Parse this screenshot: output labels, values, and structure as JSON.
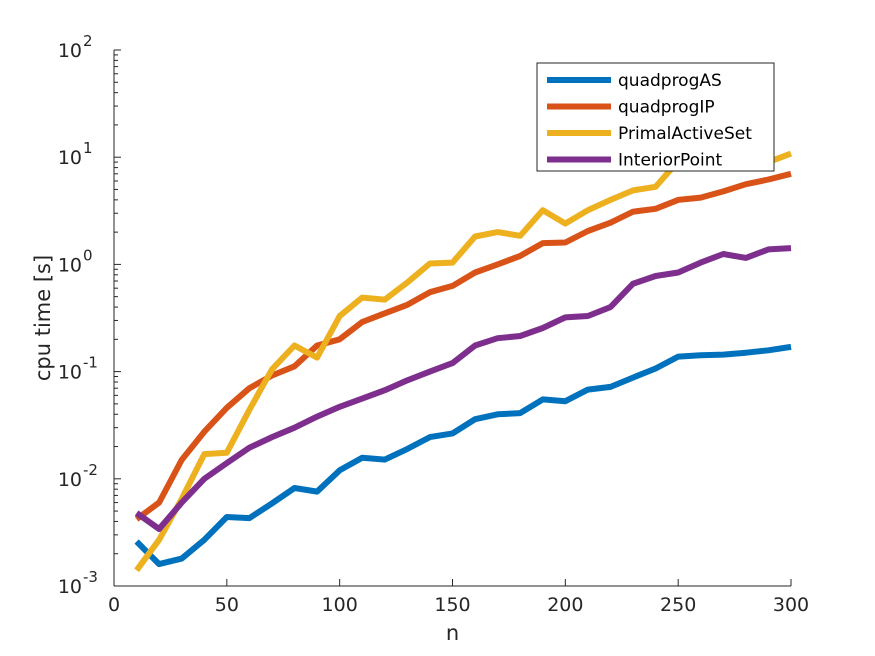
{
  "chart_data": {
    "type": "line",
    "title": "",
    "xlabel": "n",
    "ylabel": "cpu time [s]",
    "xlim": [
      0,
      300
    ],
    "ylim": [
      0.001,
      100
    ],
    "yscale": "log",
    "grid": false,
    "legend_position": "top-right",
    "x_ticks": [
      "0",
      "50",
      "100",
      "150",
      "200",
      "250",
      "300"
    ],
    "y_ticks": [
      {
        "base": "10",
        "exp": "-3"
      },
      {
        "base": "10",
        "exp": "-2"
      },
      {
        "base": "10",
        "exp": "-1"
      },
      {
        "base": "10",
        "exp": "0"
      },
      {
        "base": "10",
        "exp": "1"
      },
      {
        "base": "10",
        "exp": "2"
      }
    ],
    "x": [
      10,
      20,
      30,
      40,
      50,
      60,
      70,
      80,
      90,
      100,
      110,
      120,
      130,
      140,
      150,
      160,
      170,
      180,
      190,
      200,
      210,
      220,
      230,
      240,
      250,
      260,
      270,
      280,
      290,
      300
    ],
    "series": [
      {
        "name": "quadprogAS",
        "color": "#0072BD",
        "values": [
          0.0026,
          0.0016,
          0.0018,
          0.0027,
          0.0044,
          0.0043,
          0.0059,
          0.0082,
          0.0076,
          0.012,
          0.0157,
          0.0151,
          0.019,
          0.0245,
          0.0265,
          0.036,
          0.04,
          0.041,
          0.055,
          0.053,
          0.068,
          0.072,
          0.088,
          0.107,
          0.138,
          0.142,
          0.144,
          0.15,
          0.158,
          0.17
        ]
      },
      {
        "name": "quadprogIP",
        "color": "#D95319",
        "values": [
          0.0042,
          0.006,
          0.015,
          0.0275,
          0.046,
          0.07,
          0.092,
          0.112,
          0.175,
          0.2,
          0.29,
          0.35,
          0.42,
          0.55,
          0.63,
          0.84,
          1.0,
          1.2,
          1.58,
          1.6,
          2.05,
          2.45,
          3.1,
          3.3,
          4.0,
          4.2,
          4.8,
          5.6,
          6.2,
          7.0
        ]
      },
      {
        "name": "PrimalActiveSet",
        "color": "#EDB120",
        "values": [
          0.0014,
          0.0027,
          0.0065,
          0.017,
          0.0175,
          0.044,
          0.105,
          0.175,
          0.135,
          0.33,
          0.49,
          0.47,
          0.68,
          1.02,
          1.04,
          1.82,
          2.0,
          1.85,
          3.2,
          2.4,
          3.2,
          4.0,
          4.9,
          5.3,
          9.2,
          8.0,
          8.5,
          9.5,
          9.0,
          10.8
        ]
      },
      {
        "name": "InteriorPoint",
        "color": "#7E2F8E",
        "values": [
          0.0048,
          0.0034,
          0.006,
          0.01,
          0.014,
          0.0195,
          0.0245,
          0.03,
          0.038,
          0.047,
          0.056,
          0.067,
          0.083,
          0.1,
          0.12,
          0.175,
          0.205,
          0.215,
          0.255,
          0.32,
          0.33,
          0.4,
          0.66,
          0.78,
          0.84,
          1.04,
          1.25,
          1.15,
          1.38,
          1.42
        ]
      }
    ]
  }
}
